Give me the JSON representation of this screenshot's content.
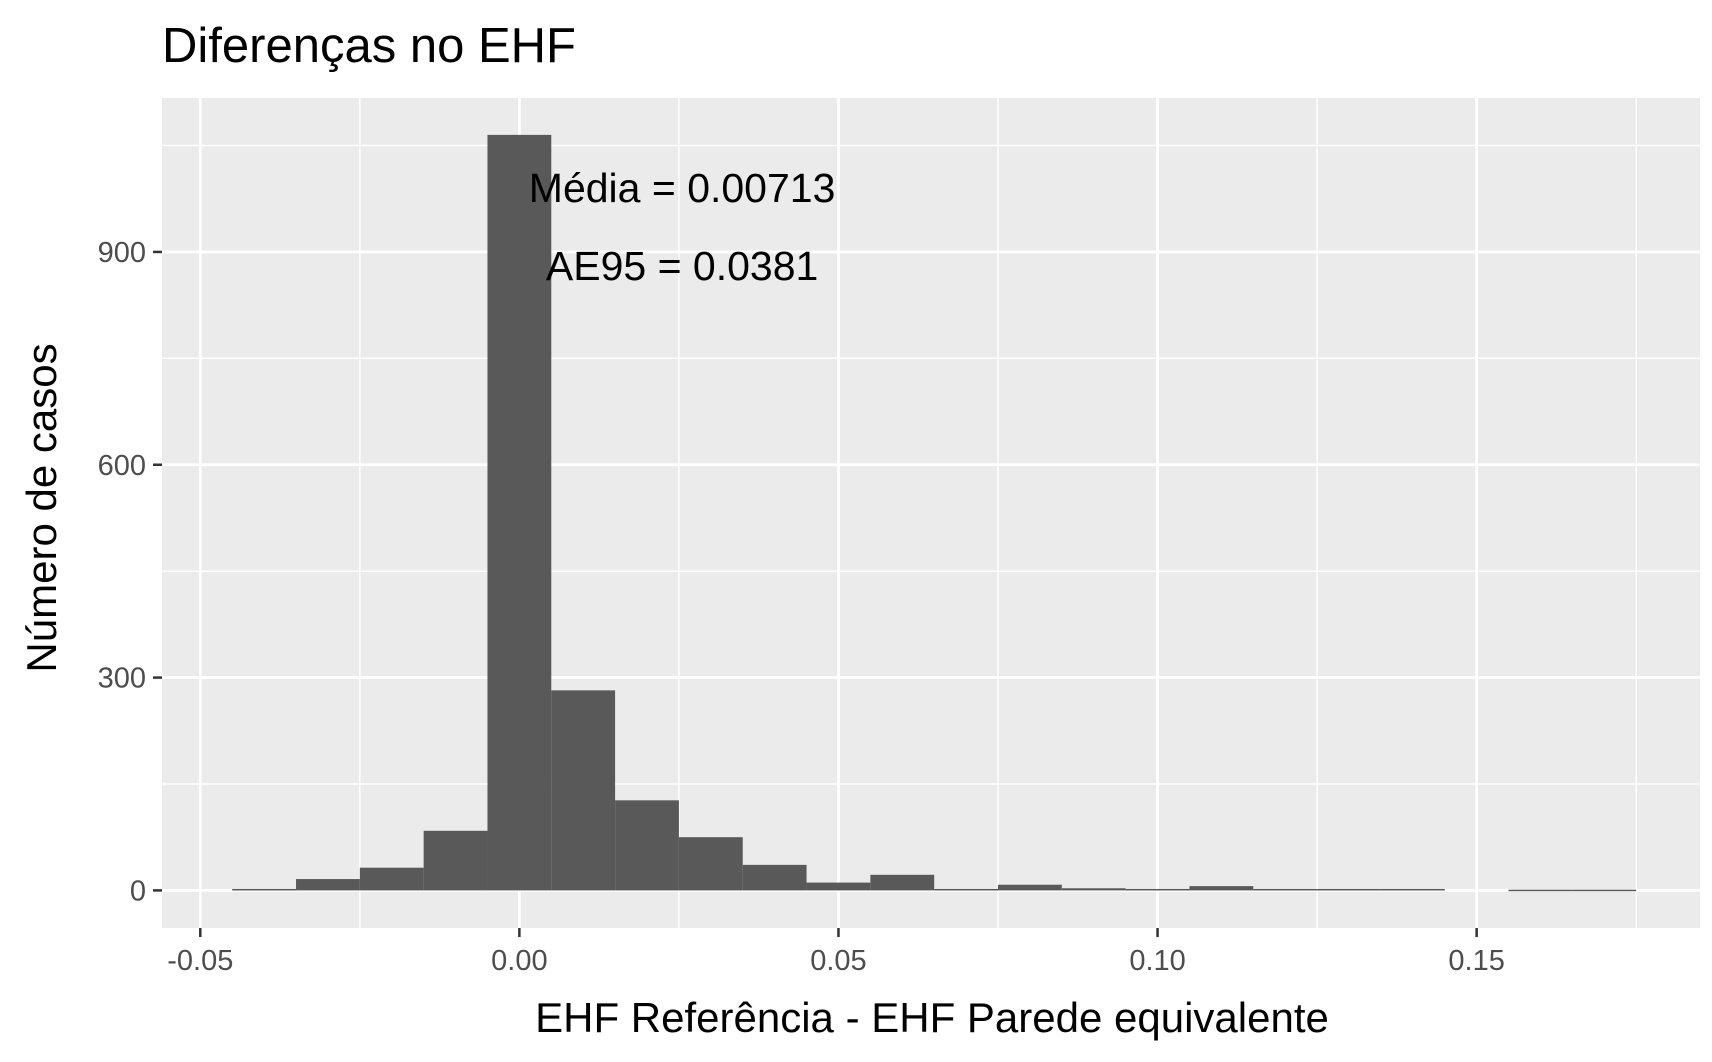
{
  "chart_data": {
    "type": "bar",
    "subtype": "histogram",
    "title": "Diferenças no EHF",
    "xlabel": "EHF Referência - EHF Parede equivalente",
    "ylabel": "Número de casos",
    "x_ticks": [
      "-0.05",
      "0.00",
      "0.05",
      "0.10",
      "0.15"
    ],
    "x_tick_values": [
      -0.05,
      0.0,
      0.05,
      0.1,
      0.15
    ],
    "y_ticks": [
      "0",
      "300",
      "600",
      "900"
    ],
    "y_tick_values": [
      0,
      300,
      600,
      900
    ],
    "xlim": [
      -0.056,
      0.185
    ],
    "ylim": [
      -53,
      1117
    ],
    "bin_width": 0.01,
    "bins": [
      {
        "x_min": -0.045,
        "x_max": -0.035,
        "count": 2
      },
      {
        "x_min": -0.035,
        "x_max": -0.025,
        "count": 16
      },
      {
        "x_min": -0.025,
        "x_max": -0.015,
        "count": 32
      },
      {
        "x_min": -0.015,
        "x_max": -0.005,
        "count": 84
      },
      {
        "x_min": -0.005,
        "x_max": 0.005,
        "count": 1065
      },
      {
        "x_min": 0.005,
        "x_max": 0.015,
        "count": 282
      },
      {
        "x_min": 0.015,
        "x_max": 0.025,
        "count": 127
      },
      {
        "x_min": 0.025,
        "x_max": 0.035,
        "count": 75
      },
      {
        "x_min": 0.035,
        "x_max": 0.045,
        "count": 36
      },
      {
        "x_min": 0.045,
        "x_max": 0.055,
        "count": 11
      },
      {
        "x_min": 0.055,
        "x_max": 0.065,
        "count": 22
      },
      {
        "x_min": 0.065,
        "x_max": 0.075,
        "count": 2
      },
      {
        "x_min": 0.075,
        "x_max": 0.085,
        "count": 8
      },
      {
        "x_min": 0.085,
        "x_max": 0.095,
        "count": 3
      },
      {
        "x_min": 0.095,
        "x_max": 0.105,
        "count": 2
      },
      {
        "x_min": 0.105,
        "x_max": 0.115,
        "count": 6
      },
      {
        "x_min": 0.115,
        "x_max": 0.125,
        "count": 2
      },
      {
        "x_min": 0.125,
        "x_max": 0.135,
        "count": 2
      },
      {
        "x_min": 0.135,
        "x_max": 0.145,
        "count": 2
      },
      {
        "x_min": 0.145,
        "x_max": 0.155,
        "count": 0
      },
      {
        "x_min": 0.155,
        "x_max": 0.165,
        "count": 1
      },
      {
        "x_min": 0.165,
        "x_max": 0.175,
        "count": 1
      }
    ],
    "annotations": [
      {
        "text": "Média = 0.00713",
        "x": 0.0255,
        "y": 990
      },
      {
        "text": "AE95 = 0.0381",
        "x": 0.0255,
        "y": 880
      }
    ],
    "grid": true,
    "legend": "none",
    "colors": {
      "panel_background": "#ebebeb",
      "grid_line": "#ffffff",
      "bar_fill": "#595959",
      "tick_text": "#4d4d4d",
      "axis_tick": "#333333"
    }
  }
}
